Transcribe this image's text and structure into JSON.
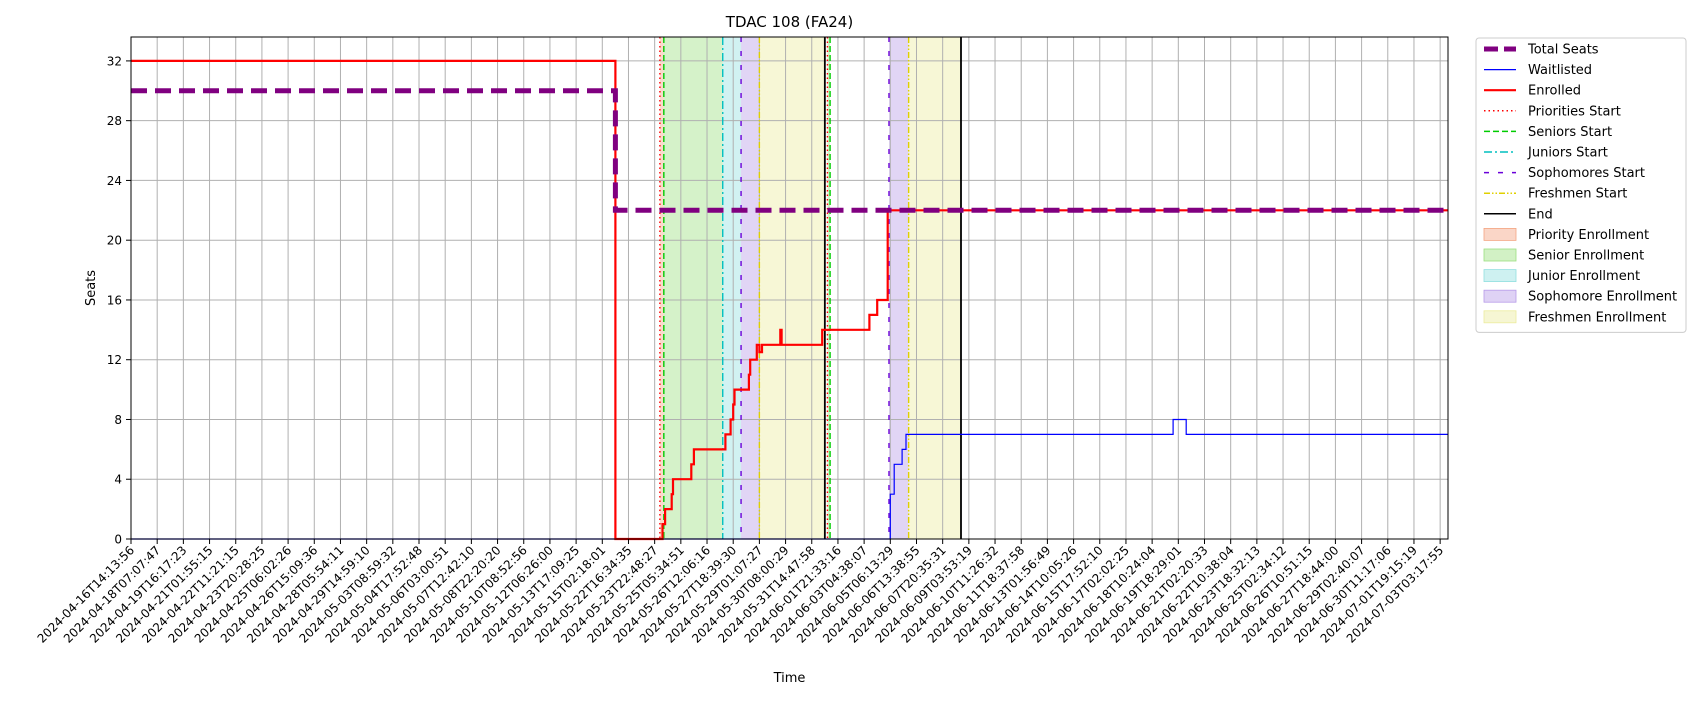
{
  "chart_data": {
    "type": "line",
    "title": "TDAC 108 (FA24)",
    "xlabel": "Time",
    "ylabel": "Seats",
    "ylim": [
      0,
      33.6
    ],
    "yticks": [
      0,
      4,
      8,
      12,
      16,
      20,
      24,
      28,
      32
    ],
    "xlim": [
      0,
      50.3
    ],
    "grid": true,
    "legend_position": "outside-right",
    "x_tick_labels": [
      "2024-04-16T14:13:56",
      "2024-04-18T07:07:47",
      "2024-04-19T16:17:23",
      "2024-04-21T01:55:15",
      "2024-04-22T11:21:15",
      "2024-04-23T20:28:25",
      "2024-04-25T06:02:26",
      "2024-04-26T15:09:36",
      "2024-04-28T05:54:11",
      "2024-04-29T14:59:10",
      "2024-05-03T08:59:32",
      "2024-05-04T17:52:48",
      "2024-05-06T03:00:51",
      "2024-05-07T12:42:10",
      "2024-05-08T22:20:20",
      "2024-05-10T08:52:56",
      "2024-05-12T06:26:00",
      "2024-05-13T17:09:25",
      "2024-05-15T02:18:01",
      "2024-05-22T16:34:35",
      "2024-05-23T22:48:27",
      "2024-05-25T05:34:51",
      "2024-05-26T12:06:16",
      "2024-05-27T18:39:30",
      "2024-05-29T01:07:27",
      "2024-05-30T08:00:29",
      "2024-05-31T14:47:58",
      "2024-06-01T21:33:16",
      "2024-06-03T04:38:07",
      "2024-06-05T06:13:29",
      "2024-06-06T13:38:55",
      "2024-06-07T20:35:31",
      "2024-06-09T03:53:19",
      "2024-06-10T11:26:32",
      "2024-06-11T18:37:58",
      "2024-06-13T01:56:49",
      "2024-06-14T10:05:26",
      "2024-06-15T17:52:10",
      "2024-06-17T02:02:25",
      "2024-06-18T10:24:04",
      "2024-06-19T18:29:01",
      "2024-06-21T02:20:33",
      "2024-06-22T10:38:04",
      "2024-06-23T18:32:13",
      "2024-06-25T02:34:12",
      "2024-06-26T10:51:15",
      "2024-06-27T18:44:00",
      "2024-06-29T02:40:07",
      "2024-06-30T11:17:06",
      "2024-07-01T19:15:19",
      "2024-07-03T03:17:55"
    ],
    "series": [
      {
        "name": "Total Seats",
        "color": "#800080",
        "style": "dashed-thick",
        "points": [
          [
            0,
            30
          ],
          [
            18.5,
            30
          ],
          [
            18.5,
            22
          ],
          [
            50.3,
            22
          ]
        ]
      },
      {
        "name": "Waitlisted",
        "color": "#0000ff",
        "style": "solid-thin",
        "points": [
          [
            0,
            0
          ],
          [
            29.0,
            0
          ],
          [
            29.0,
            3
          ],
          [
            29.15,
            3
          ],
          [
            29.15,
            5
          ],
          [
            29.45,
            5
          ],
          [
            29.45,
            6
          ],
          [
            29.6,
            6
          ],
          [
            29.6,
            7
          ],
          [
            39.8,
            7
          ],
          [
            39.8,
            8
          ],
          [
            40.3,
            8
          ],
          [
            40.3,
            7
          ],
          [
            50.3,
            7
          ]
        ]
      },
      {
        "name": "Enrolled",
        "color": "#ff0000",
        "style": "solid",
        "points": [
          [
            0,
            32
          ],
          [
            18.5,
            32
          ],
          [
            18.5,
            0
          ],
          [
            20.3,
            0
          ],
          [
            20.3,
            1
          ],
          [
            20.4,
            1
          ],
          [
            20.4,
            2
          ],
          [
            20.65,
            2
          ],
          [
            20.65,
            3
          ],
          [
            20.7,
            3
          ],
          [
            20.7,
            4
          ],
          [
            21.4,
            4
          ],
          [
            21.4,
            5
          ],
          [
            21.5,
            5
          ],
          [
            21.5,
            6
          ],
          [
            22.7,
            6
          ],
          [
            22.7,
            7
          ],
          [
            22.9,
            7
          ],
          [
            22.9,
            8
          ],
          [
            23.0,
            8
          ],
          [
            23.0,
            9
          ],
          [
            23.05,
            9
          ],
          [
            23.05,
            10
          ],
          [
            23.6,
            10
          ],
          [
            23.6,
            11
          ],
          [
            23.65,
            11
          ],
          [
            23.65,
            12
          ],
          [
            23.9,
            12
          ],
          [
            23.9,
            13
          ],
          [
            24.0,
            13
          ],
          [
            24.0,
            12.5
          ],
          [
            24.1,
            12.5
          ],
          [
            24.1,
            13
          ],
          [
            24.8,
            13
          ],
          [
            24.8,
            14
          ],
          [
            24.85,
            14
          ],
          [
            24.85,
            13
          ],
          [
            26.4,
            13
          ],
          [
            26.4,
            14
          ],
          [
            28.2,
            14
          ],
          [
            28.2,
            15
          ],
          [
            28.5,
            15
          ],
          [
            28.5,
            16
          ],
          [
            28.9,
            16
          ],
          [
            28.9,
            22
          ],
          [
            50.3,
            22
          ]
        ]
      }
    ],
    "vertical_lines": [
      {
        "name": "Priorities Start",
        "color": "#ff0000",
        "style": "dotted",
        "x": [
          20.2,
          26.6
        ]
      },
      {
        "name": "Seniors Start",
        "color": "#00cc00",
        "style": "dashed",
        "x": [
          20.35,
          26.7
        ]
      },
      {
        "name": "Juniors Start",
        "color": "#00bfbf",
        "style": "dashdot",
        "x": [
          22.6
        ]
      },
      {
        "name": "Sophomores Start",
        "color": "#6a00d9",
        "style": "loosely-dashed",
        "x": [
          23.3,
          28.95
        ]
      },
      {
        "name": "Freshmen Start",
        "color": "#e0d000",
        "style": "dashdot-dotted",
        "x": [
          24.0,
          29.7
        ]
      },
      {
        "name": "End",
        "color": "#000000",
        "style": "solid",
        "x": [
          26.5,
          31.7
        ]
      }
    ],
    "spans": [
      {
        "name": "Priority Enrollment",
        "color": "#f4a582",
        "ranges": [
          [
            20.2,
            20.35
          ]
        ]
      },
      {
        "name": "Senior Enrollment",
        "color": "#9be07f",
        "ranges": [
          [
            20.35,
            22.6
          ],
          [
            26.6,
            26.7
          ]
        ]
      },
      {
        "name": "Junior Enrollment",
        "color": "#92e0e0",
        "ranges": [
          [
            22.6,
            23.3
          ]
        ]
      },
      {
        "name": "Sophomore Enrollment",
        "color": "#b79be8",
        "ranges": [
          [
            23.3,
            24.0
          ],
          [
            28.95,
            29.7
          ]
        ]
      },
      {
        "name": "Freshmen Enrollment",
        "color": "#ecec9e",
        "ranges": [
          [
            24.0,
            26.5
          ],
          [
            29.7,
            31.7
          ]
        ]
      }
    ],
    "legend": [
      "Total Seats",
      "Waitlisted",
      "Enrolled",
      "Priorities Start",
      "Seniors Start",
      "Juniors Start",
      "Sophomores Start",
      "Freshmen Start",
      "End",
      "Priority Enrollment",
      "Senior Enrollment",
      "Junior Enrollment",
      "Sophomore Enrollment",
      "Freshmen Enrollment"
    ]
  }
}
